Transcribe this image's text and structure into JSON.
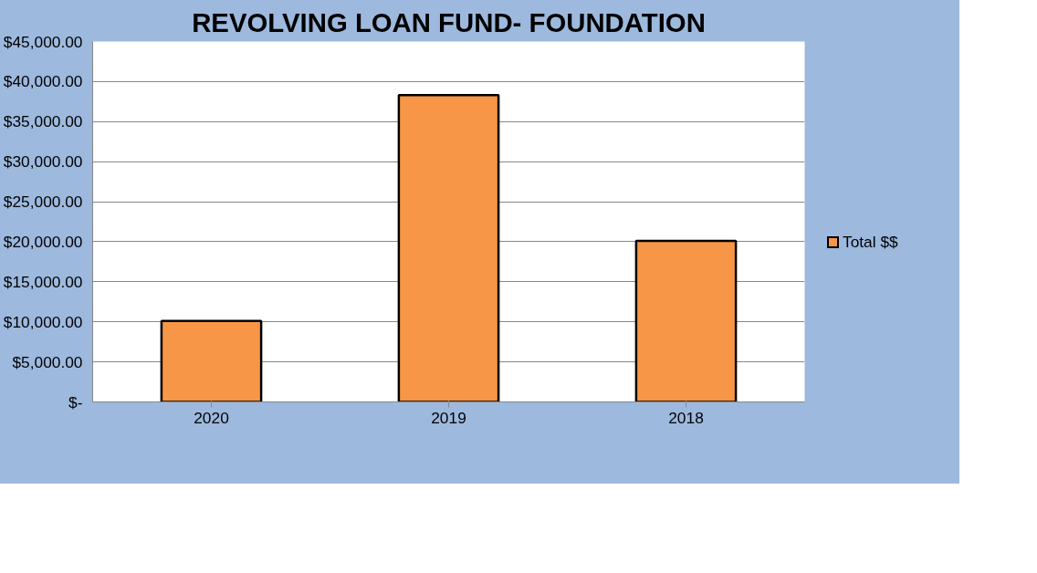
{
  "chart_data": {
    "type": "bar",
    "title": "REVOLVING LOAN FUND- FOUNDATION",
    "categories": [
      "2020",
      "2019",
      "2018"
    ],
    "series": [
      {
        "name": "Total $$",
        "color": "#f79646",
        "values": [
          10100,
          38300,
          20100
        ]
      }
    ],
    "ylim": [
      0,
      45000
    ],
    "yticks": [
      {
        "value": 0,
        "label": "$-"
      },
      {
        "value": 5000,
        "label": "$5,000.00"
      },
      {
        "value": 10000,
        "label": "$10,000.00"
      },
      {
        "value": 15000,
        "label": "$15,000.00"
      },
      {
        "value": 20000,
        "label": "$20,000.00"
      },
      {
        "value": 25000,
        "label": "$25,000.00"
      },
      {
        "value": 30000,
        "label": "$30,000.00"
      },
      {
        "value": 35000,
        "label": "$35,000.00"
      },
      {
        "value": 40000,
        "label": "$40,000.00"
      },
      {
        "value": 45000,
        "label": "$45,000.00"
      }
    ],
    "grid": "y",
    "legend": "right"
  }
}
